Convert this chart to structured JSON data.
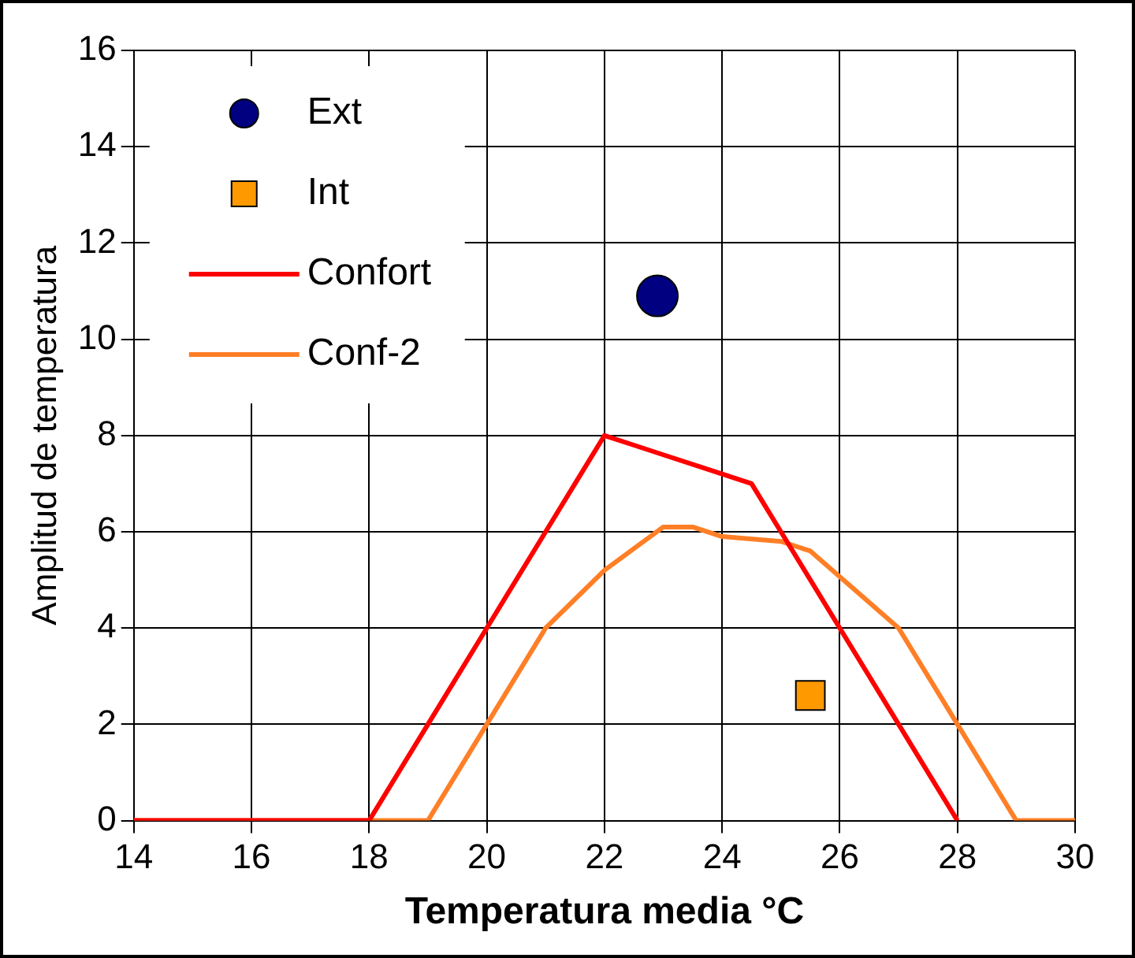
{
  "chart_data": {
    "type": "line",
    "xlabel": "Temperatura media °C",
    "ylabel": "Amplitud de temperatura",
    "xlim": [
      14,
      30
    ],
    "xticks": [
      14,
      16,
      18,
      20,
      22,
      24,
      26,
      28,
      30
    ],
    "ylim": [
      0,
      16
    ],
    "yticks": [
      0,
      2,
      4,
      6,
      8,
      10,
      12,
      14,
      16
    ],
    "grid": true,
    "legend": "top left",
    "series": [
      {
        "name": "Ext",
        "type": "scatter",
        "marker": "circle",
        "color": "#000080",
        "x": [
          22.9
        ],
        "values": [
          10.9
        ]
      },
      {
        "name": "Int",
        "type": "scatter",
        "marker": "square",
        "color": "#ff9900",
        "x": [
          25.5
        ],
        "values": [
          2.6
        ]
      },
      {
        "name": "Confort",
        "type": "line",
        "marker": "none",
        "color": "#ff0000",
        "x": [
          14,
          18,
          19,
          20,
          21,
          21.5,
          22,
          22.5,
          23,
          24,
          24.5,
          25,
          26,
          27,
          28
        ],
        "values": [
          0,
          0,
          2,
          4,
          6,
          7,
          8,
          7.8,
          7.6,
          7.2,
          7,
          6,
          4,
          2,
          0
        ]
      },
      {
        "name": "Conf-2",
        "type": "line",
        "marker": "none",
        "color": "#ff7f27",
        "x": [
          14,
          19,
          20,
          21,
          22,
          23,
          23.5,
          24,
          25,
          25.5,
          27,
          28,
          28.5,
          29,
          30
        ],
        "values": [
          0,
          0,
          2,
          4,
          5.2,
          6.1,
          6.1,
          5.9,
          5.8,
          5.6,
          4,
          2,
          1,
          0,
          0
        ]
      }
    ]
  }
}
